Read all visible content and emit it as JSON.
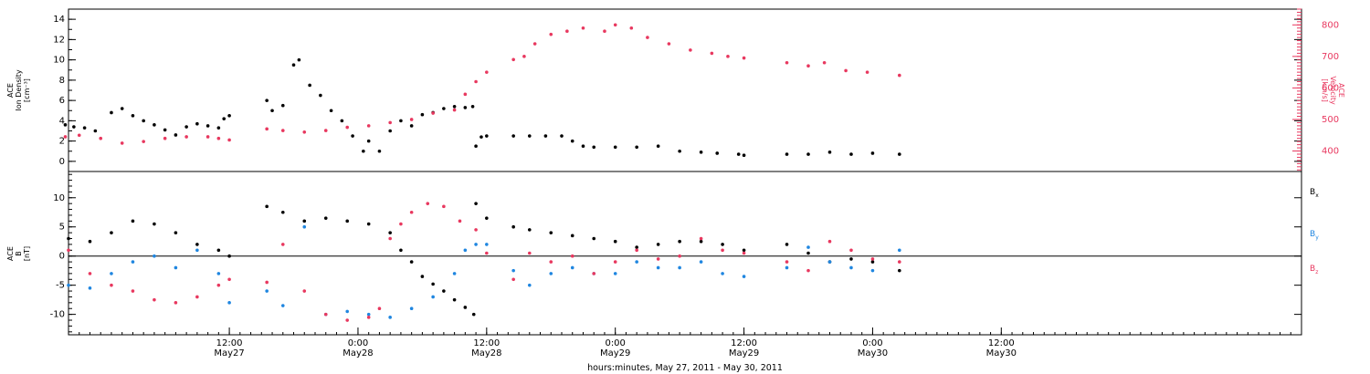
{
  "figure": {
    "xaxis_caption": "hours:minutes, May 27, 2011 - May 30, 2011"
  },
  "colors": {
    "black": "#000000",
    "pink": "#e8385f",
    "blue": "#1f86e0"
  },
  "chart_data": [
    {
      "type": "scatter",
      "panel": "top",
      "ylabel_left": [
        "ACE",
        "Ion Density",
        "[cm⁻³]"
      ],
      "ylabel_right": [
        "ACE",
        "Velocity",
        "[km/s]"
      ],
      "x_range": [
        -15,
        100
      ],
      "ylim_left": [
        -1,
        15
      ],
      "ylim_right": [
        335,
        850
      ],
      "yticks_left": [
        0,
        2,
        4,
        6,
        8,
        10,
        12,
        14
      ],
      "yticks_right": [
        400,
        500,
        600,
        700,
        800
      ],
      "series": [
        {
          "axis": "left",
          "color": "#000000",
          "points": [
            [
              -15.3,
              3.6
            ],
            [
              -14.5,
              3.4
            ],
            [
              -13.5,
              3.3
            ],
            [
              -12.5,
              3.0
            ],
            [
              -11.0,
              4.8
            ],
            [
              -10.0,
              5.2
            ],
            [
              -9.0,
              4.5
            ],
            [
              -8.0,
              4.0
            ],
            [
              -7.0,
              3.6
            ],
            [
              -6.0,
              3.1
            ],
            [
              -5.0,
              2.6
            ],
            [
              -4.0,
              3.4
            ],
            [
              -3.0,
              3.7
            ],
            [
              -2.0,
              3.5
            ],
            [
              -1.0,
              3.3
            ],
            [
              -0.5,
              4.2
            ],
            [
              0.0,
              4.5
            ],
            [
              3.5,
              6.0
            ],
            [
              4.0,
              5.0
            ],
            [
              5.0,
              5.5
            ],
            [
              6.0,
              9.5
            ],
            [
              6.5,
              10.0
            ],
            [
              7.5,
              7.5
            ],
            [
              8.5,
              6.5
            ],
            [
              9.5,
              5.0
            ],
            [
              10.5,
              4.0
            ],
            [
              11.5,
              2.5
            ],
            [
              12.5,
              1.0
            ],
            [
              13.0,
              2.0
            ],
            [
              14.0,
              1.0
            ],
            [
              15.0,
              3.0
            ],
            [
              16.0,
              4.0
            ],
            [
              17.0,
              3.5
            ],
            [
              18.0,
              4.6
            ],
            [
              19.0,
              4.8
            ],
            [
              20.0,
              5.2
            ],
            [
              21.0,
              5.4
            ],
            [
              22.0,
              5.3
            ],
            [
              22.7,
              5.4
            ],
            [
              23.0,
              1.5
            ],
            [
              23.5,
              2.4
            ],
            [
              24.0,
              2.5
            ],
            [
              26.5,
              2.5
            ],
            [
              28.0,
              2.5
            ],
            [
              29.5,
              2.5
            ],
            [
              31.0,
              2.5
            ],
            [
              32.0,
              2.0
            ],
            [
              33.0,
              1.5
            ],
            [
              34.0,
              1.4
            ],
            [
              36.0,
              1.4
            ],
            [
              38.0,
              1.4
            ],
            [
              40.0,
              1.5
            ],
            [
              42.0,
              1.0
            ],
            [
              44.0,
              0.9
            ],
            [
              45.5,
              0.8
            ],
            [
              47.5,
              0.7
            ],
            [
              48.0,
              0.6
            ],
            [
              52.0,
              0.7
            ],
            [
              54.0,
              0.7
            ],
            [
              56.0,
              0.9
            ],
            [
              58.0,
              0.7
            ],
            [
              60.0,
              0.8
            ],
            [
              62.5,
              0.7
            ]
          ]
        },
        {
          "axis": "right",
          "color": "#e8385f",
          "points": [
            [
              -15.3,
              445
            ],
            [
              -14.0,
              450
            ],
            [
              -12.0,
              440
            ],
            [
              -10.0,
              425
            ],
            [
              -8.0,
              430
            ],
            [
              -6.0,
              440
            ],
            [
              -4.0,
              445
            ],
            [
              -2.0,
              445
            ],
            [
              -1.0,
              440
            ],
            [
              0.0,
              435
            ],
            [
              3.5,
              470
            ],
            [
              5.0,
              465
            ],
            [
              7.0,
              460
            ],
            [
              9.0,
              465
            ],
            [
              11.0,
              475
            ],
            [
              13.0,
              480
            ],
            [
              15.0,
              490
            ],
            [
              17.0,
              500
            ],
            [
              19.0,
              520
            ],
            [
              21.0,
              530
            ],
            [
              22.0,
              580
            ],
            [
              23.0,
              620
            ],
            [
              24.0,
              650
            ],
            [
              26.5,
              690
            ],
            [
              27.5,
              700
            ],
            [
              28.5,
              740
            ],
            [
              30.0,
              770
            ],
            [
              31.5,
              780
            ],
            [
              33.0,
              790
            ],
            [
              35.0,
              780
            ],
            [
              36.0,
              800
            ],
            [
              37.5,
              790
            ],
            [
              39.0,
              760
            ],
            [
              41.0,
              740
            ],
            [
              43.0,
              720
            ],
            [
              45.0,
              710
            ],
            [
              46.5,
              700
            ],
            [
              48.0,
              695
            ],
            [
              52.0,
              680
            ],
            [
              54.0,
              670
            ],
            [
              55.5,
              680
            ],
            [
              57.5,
              655
            ],
            [
              59.5,
              650
            ],
            [
              62.5,
              640
            ]
          ]
        }
      ]
    },
    {
      "type": "scatter",
      "panel": "bottom",
      "ylabel": [
        "ACE",
        "B",
        "[nT]"
      ],
      "x_range": [
        -15,
        100
      ],
      "ylim": [
        -13.5,
        14.5
      ],
      "yticks": [
        -10,
        -5,
        0,
        5,
        10
      ],
      "zero_line": true,
      "legend": [
        "Bx",
        "By",
        "Bz"
      ],
      "series": [
        {
          "name": "Bx",
          "color": "#000000",
          "points": [
            [
              -15.0,
              3.0
            ],
            [
              -13.0,
              2.5
            ],
            [
              -11.0,
              4.0
            ],
            [
              -9.0,
              6.0
            ],
            [
              -7.0,
              5.5
            ],
            [
              -5.0,
              4.0
            ],
            [
              -3.0,
              2.0
            ],
            [
              -1.0,
              1.0
            ],
            [
              0.0,
              0.0
            ],
            [
              3.5,
              8.5
            ],
            [
              5.0,
              7.5
            ],
            [
              7.0,
              6.0
            ],
            [
              9.0,
              6.5
            ],
            [
              11.0,
              6.0
            ],
            [
              13.0,
              5.5
            ],
            [
              15.0,
              4.0
            ],
            [
              16.0,
              1.0
            ],
            [
              17.0,
              -1.0
            ],
            [
              18.0,
              -3.5
            ],
            [
              19.0,
              -4.8
            ],
            [
              20.0,
              -6.0
            ],
            [
              21.0,
              -7.5
            ],
            [
              22.0,
              -8.8
            ],
            [
              22.8,
              -10.0
            ],
            [
              23.0,
              9.0
            ],
            [
              24.0,
              6.5
            ],
            [
              26.5,
              5.0
            ],
            [
              28.0,
              4.5
            ],
            [
              30.0,
              4.0
            ],
            [
              32.0,
              3.5
            ],
            [
              34.0,
              3.0
            ],
            [
              36.0,
              2.5
            ],
            [
              38.0,
              1.5
            ],
            [
              40.0,
              2.0
            ],
            [
              42.0,
              2.5
            ],
            [
              44.0,
              2.5
            ],
            [
              46.0,
              2.0
            ],
            [
              48.0,
              1.0
            ],
            [
              52.0,
              2.0
            ],
            [
              54.0,
              0.5
            ],
            [
              56.0,
              -1.0
            ],
            [
              58.0,
              -0.5
            ],
            [
              60.0,
              -1.0
            ],
            [
              62.5,
              -2.5
            ]
          ]
        },
        {
          "name": "By",
          "color": "#1f86e0",
          "points": [
            [
              -15.0,
              -5.0
            ],
            [
              -13.0,
              -5.5
            ],
            [
              -11.0,
              -3.0
            ],
            [
              -9.0,
              -1.0
            ],
            [
              -7.0,
              0.0
            ],
            [
              -5.0,
              -2.0
            ],
            [
              -3.0,
              1.0
            ],
            [
              -1.0,
              -3.0
            ],
            [
              0.0,
              -8.0
            ],
            [
              3.5,
              -6.0
            ],
            [
              5.0,
              -8.5
            ],
            [
              7.0,
              5.0
            ],
            [
              9.0,
              -10.0
            ],
            [
              11.0,
              -9.5
            ],
            [
              13.0,
              -10.0
            ],
            [
              15.0,
              -10.5
            ],
            [
              17.0,
              -9.0
            ],
            [
              19.0,
              -7.0
            ],
            [
              21.0,
              -3.0
            ],
            [
              22.0,
              1.0
            ],
            [
              23.0,
              2.0
            ],
            [
              24.0,
              2.0
            ],
            [
              26.5,
              -2.5
            ],
            [
              28.0,
              -5.0
            ],
            [
              30.0,
              -3.0
            ],
            [
              32.0,
              -2.0
            ],
            [
              34.0,
              -3.0
            ],
            [
              36.0,
              -3.0
            ],
            [
              38.0,
              -1.0
            ],
            [
              40.0,
              -2.0
            ],
            [
              42.0,
              -2.0
            ],
            [
              44.0,
              -1.0
            ],
            [
              46.0,
              -3.0
            ],
            [
              48.0,
              -3.5
            ],
            [
              52.0,
              -2.0
            ],
            [
              54.0,
              1.5
            ],
            [
              56.0,
              -1.0
            ],
            [
              58.0,
              -2.0
            ],
            [
              60.0,
              -2.5
            ],
            [
              62.5,
              1.0
            ]
          ]
        },
        {
          "name": "Bz",
          "color": "#e8385f",
          "points": [
            [
              -15.0,
              1.0
            ],
            [
              -13.0,
              -3.0
            ],
            [
              -11.0,
              -5.0
            ],
            [
              -9.0,
              -6.0
            ],
            [
              -7.0,
              -7.5
            ],
            [
              -5.0,
              -8.0
            ],
            [
              -3.0,
              -7.0
            ],
            [
              -1.0,
              -5.0
            ],
            [
              0.0,
              -4.0
            ],
            [
              3.5,
              -4.5
            ],
            [
              5.0,
              2.0
            ],
            [
              7.0,
              -6.0
            ],
            [
              9.0,
              -10.0
            ],
            [
              11.0,
              -11.0
            ],
            [
              13.0,
              -10.5
            ],
            [
              14.0,
              -9.0
            ],
            [
              15.0,
              3.0
            ],
            [
              16.0,
              5.5
            ],
            [
              17.0,
              7.5
            ],
            [
              18.5,
              9.0
            ],
            [
              20.0,
              8.5
            ],
            [
              21.5,
              6.0
            ],
            [
              23.0,
              4.5
            ],
            [
              24.0,
              0.5
            ],
            [
              26.5,
              -4.0
            ],
            [
              28.0,
              0.5
            ],
            [
              30.0,
              -1.0
            ],
            [
              32.0,
              0.0
            ],
            [
              34.0,
              -3.0
            ],
            [
              36.0,
              -1.0
            ],
            [
              38.0,
              1.0
            ],
            [
              40.0,
              -0.5
            ],
            [
              42.0,
              0.0
            ],
            [
              44.0,
              3.0
            ],
            [
              46.0,
              1.0
            ],
            [
              48.0,
              0.5
            ],
            [
              52.0,
              -1.0
            ],
            [
              54.0,
              -2.5
            ],
            [
              56.0,
              2.5
            ],
            [
              58.0,
              1.0
            ],
            [
              60.0,
              -0.5
            ],
            [
              62.5,
              -1.0
            ]
          ]
        }
      ]
    }
  ],
  "x_axis": {
    "ticks": [
      {
        "x": 0,
        "time": "12:00",
        "date": "May27"
      },
      {
        "x": 12,
        "time": "0:00",
        "date": "May28"
      },
      {
        "x": 24,
        "time": "12:00",
        "date": "May28"
      },
      {
        "x": 36,
        "time": "0:00",
        "date": "May29"
      },
      {
        "x": 48,
        "time": "12:00",
        "date": "May29"
      },
      {
        "x": 60,
        "time": "0:00",
        "date": "May30"
      },
      {
        "x": 72,
        "time": "12:00",
        "date": "May30"
      }
    ]
  }
}
